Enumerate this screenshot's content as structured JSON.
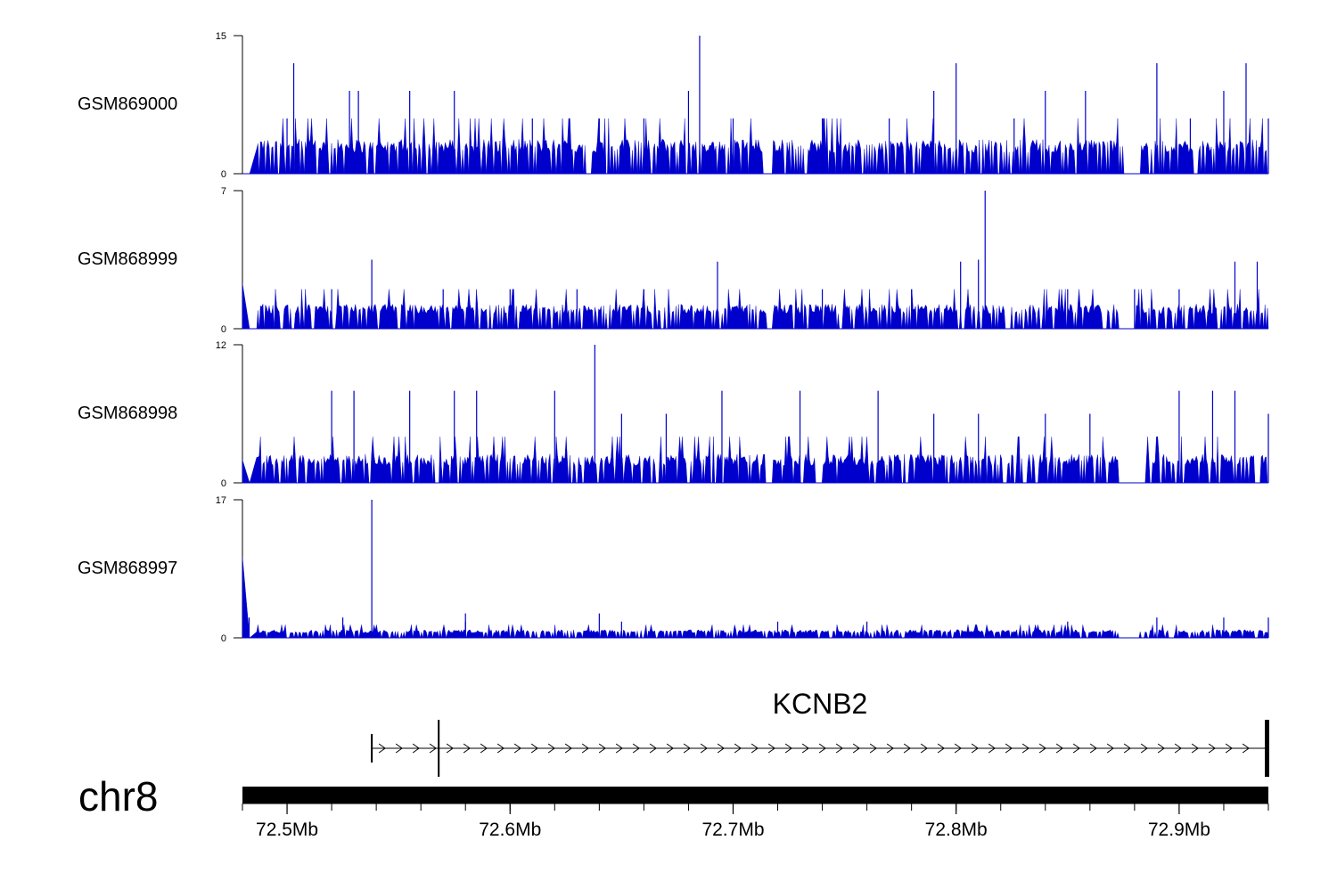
{
  "chart_data": {
    "type": "genome-coverage",
    "chromosome": "chr8",
    "x_range_mb": [
      72.48,
      72.94
    ],
    "x_ticks": [
      {
        "value": 72.5,
        "label": "72.5Mb"
      },
      {
        "value": 72.6,
        "label": "72.6Mb"
      },
      {
        "value": 72.7,
        "label": "72.7Mb"
      },
      {
        "value": 72.8,
        "label": "72.8Mb"
      },
      {
        "value": 72.9,
        "label": "72.9Mb"
      }
    ],
    "minor_tick_step_mb": 0.02,
    "color": "#0000cc",
    "tracks": [
      {
        "name": "GSM869000",
        "ymin_label": "0",
        "ymax_label": "15",
        "ymax": 15,
        "base": 3,
        "gaps": [
          [
            72.713,
            72.718
          ],
          [
            72.875,
            72.883
          ]
        ],
        "spikes": [
          [
            72.503,
            12
          ],
          [
            72.5,
            6
          ],
          [
            72.528,
            9
          ],
          [
            72.532,
            9
          ],
          [
            72.555,
            9
          ],
          [
            72.575,
            9
          ],
          [
            72.61,
            6
          ],
          [
            72.64,
            6
          ],
          [
            72.66,
            6
          ],
          [
            72.68,
            9
          ],
          [
            72.685,
            15
          ],
          [
            72.7,
            6
          ],
          [
            72.74,
            6
          ],
          [
            72.77,
            6
          ],
          [
            72.79,
            9
          ],
          [
            72.8,
            12
          ],
          [
            72.826,
            6
          ],
          [
            72.84,
            9
          ],
          [
            72.858,
            9
          ],
          [
            72.89,
            12
          ],
          [
            72.905,
            6
          ],
          [
            72.92,
            9
          ],
          [
            72.93,
            12
          ],
          [
            72.94,
            6
          ]
        ]
      },
      {
        "name": "GSM868999",
        "ymin_label": "0",
        "ymax_label": "7",
        "ymax": 7,
        "base": 1,
        "gaps": [
          [
            72.715,
            72.718
          ],
          [
            72.873,
            72.88
          ]
        ],
        "edge_start": 2.3,
        "spikes": [
          [
            72.538,
            3.5
          ],
          [
            72.52,
            2
          ],
          [
            72.57,
            2
          ],
          [
            72.6,
            2
          ],
          [
            72.63,
            2
          ],
          [
            72.66,
            2
          ],
          [
            72.693,
            3.4
          ],
          [
            72.74,
            2
          ],
          [
            72.78,
            2
          ],
          [
            72.802,
            3.4
          ],
          [
            72.813,
            7
          ],
          [
            72.81,
            3.5
          ],
          [
            72.85,
            2
          ],
          [
            72.88,
            2
          ],
          [
            72.925,
            3.4
          ],
          [
            72.935,
            3.4
          ],
          [
            72.9,
            2
          ]
        ]
      },
      {
        "name": "GSM868998",
        "ymin_label": "0",
        "ymax_label": "12",
        "ymax": 12,
        "base": 2,
        "gaps": [
          [
            72.715,
            72.718
          ],
          [
            72.873,
            72.885
          ]
        ],
        "edge_start": 2,
        "spikes": [
          [
            72.52,
            8
          ],
          [
            72.53,
            8
          ],
          [
            72.555,
            8
          ],
          [
            72.575,
            8
          ],
          [
            72.585,
            8
          ],
          [
            72.62,
            8
          ],
          [
            72.638,
            12
          ],
          [
            72.65,
            6
          ],
          [
            72.67,
            6
          ],
          [
            72.695,
            8
          ],
          [
            72.73,
            8
          ],
          [
            72.765,
            8
          ],
          [
            72.79,
            6
          ],
          [
            72.81,
            6
          ],
          [
            72.84,
            6
          ],
          [
            72.86,
            6
          ],
          [
            72.9,
            8
          ],
          [
            72.915,
            8
          ],
          [
            72.925,
            8
          ],
          [
            72.94,
            6
          ]
        ]
      },
      {
        "name": "GSM868997",
        "ymin_label": "0",
        "ymax_label": "17",
        "ymax": 17,
        "base": 0.8,
        "gaps": [
          [
            72.873,
            72.882
          ]
        ],
        "edge_start": 10,
        "spikes": [
          [
            72.538,
            17
          ],
          [
            72.483,
            2.5
          ],
          [
            72.525,
            2.5
          ],
          [
            72.58,
            3
          ],
          [
            72.58,
            2
          ],
          [
            72.64,
            3
          ],
          [
            72.65,
            2
          ],
          [
            72.72,
            2
          ],
          [
            72.76,
            2
          ],
          [
            72.85,
            2
          ],
          [
            72.89,
            2.5
          ],
          [
            72.92,
            2.5
          ],
          [
            72.94,
            2.5
          ]
        ]
      }
    ],
    "gene": {
      "name": "KCNB2",
      "strand": "+",
      "transcript_start_mb": 72.538,
      "exon_mark_mb": 72.568,
      "transcript_end_mb": 72.94
    }
  }
}
